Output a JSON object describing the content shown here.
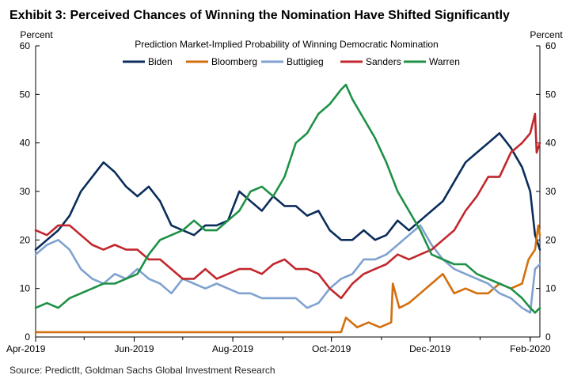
{
  "chart_data": {
    "type": "line",
    "title": "Exhibit 3: Perceived Chances of Winning the Nomination Have Shifted Significantly",
    "subtitle": "Prediction Market-Implied  Probability of Winning Democratic Nomination",
    "ylabel_left": "Percent",
    "ylabel_right": "Percent",
    "ylim": [
      0,
      60
    ],
    "yticks": [
      0,
      10,
      20,
      30,
      40,
      50,
      60
    ],
    "x_axis": {
      "start": "2019-04-01",
      "end": "2020-02-07",
      "tick_labels": [
        {
          "date": "2019-04-01",
          "label": "Apr-2019"
        },
        {
          "date": "2019-06-01",
          "label": "Jun-2019"
        },
        {
          "date": "2019-08-01",
          "label": "Aug-2019"
        },
        {
          "date": "2019-10-01",
          "label": "Oct-2019"
        },
        {
          "date": "2019-12-01",
          "label": "Dec-2019"
        },
        {
          "date": "2020-02-01",
          "label": "Feb-2020"
        }
      ]
    },
    "grid": false,
    "legend_position": "top",
    "source": "Source: PredictIt, Goldman Sachs Global Investment Research",
    "series": [
      {
        "name": "Biden",
        "color": "#0b2d5b",
        "points": [
          [
            "2019-04-01",
            18
          ],
          [
            "2019-04-08",
            20
          ],
          [
            "2019-04-15",
            22
          ],
          [
            "2019-04-22",
            25
          ],
          [
            "2019-04-29",
            30
          ],
          [
            "2019-05-06",
            33
          ],
          [
            "2019-05-13",
            36
          ],
          [
            "2019-05-20",
            34
          ],
          [
            "2019-05-27",
            31
          ],
          [
            "2019-06-03",
            29
          ],
          [
            "2019-06-10",
            31
          ],
          [
            "2019-06-17",
            28
          ],
          [
            "2019-06-24",
            23
          ],
          [
            "2019-07-01",
            22
          ],
          [
            "2019-07-08",
            21
          ],
          [
            "2019-07-15",
            23
          ],
          [
            "2019-07-22",
            23
          ],
          [
            "2019-07-29",
            24
          ],
          [
            "2019-08-05",
            30
          ],
          [
            "2019-08-12",
            28
          ],
          [
            "2019-08-19",
            26
          ],
          [
            "2019-08-26",
            29
          ],
          [
            "2019-09-02",
            27
          ],
          [
            "2019-09-09",
            27
          ],
          [
            "2019-09-16",
            25
          ],
          [
            "2019-09-23",
            26
          ],
          [
            "2019-09-30",
            22
          ],
          [
            "2019-10-07",
            20
          ],
          [
            "2019-10-14",
            20
          ],
          [
            "2019-10-21",
            22
          ],
          [
            "2019-10-28",
            20
          ],
          [
            "2019-11-04",
            21
          ],
          [
            "2019-11-11",
            24
          ],
          [
            "2019-11-18",
            22
          ],
          [
            "2019-11-25",
            24
          ],
          [
            "2019-12-02",
            26
          ],
          [
            "2019-12-09",
            28
          ],
          [
            "2019-12-16",
            32
          ],
          [
            "2019-12-23",
            36
          ],
          [
            "2019-12-30",
            38
          ],
          [
            "2020-01-06",
            40
          ],
          [
            "2020-01-13",
            42
          ],
          [
            "2020-01-20",
            39
          ],
          [
            "2020-01-27",
            35
          ],
          [
            "2020-02-01",
            30
          ],
          [
            "2020-02-04",
            21
          ],
          [
            "2020-02-07",
            18
          ]
        ]
      },
      {
        "name": "Bloomberg",
        "color": "#d46f0e",
        "points": [
          [
            "2019-04-01",
            1
          ],
          [
            "2019-05-01",
            1
          ],
          [
            "2019-06-01",
            1
          ],
          [
            "2019-07-01",
            1
          ],
          [
            "2019-08-01",
            1
          ],
          [
            "2019-09-01",
            1
          ],
          [
            "2019-10-01",
            1
          ],
          [
            "2019-10-07",
            1
          ],
          [
            "2019-10-10",
            4
          ],
          [
            "2019-10-17",
            2
          ],
          [
            "2019-10-24",
            3
          ],
          [
            "2019-10-31",
            2
          ],
          [
            "2019-11-07",
            3
          ],
          [
            "2019-11-08",
            11
          ],
          [
            "2019-11-12",
            6
          ],
          [
            "2019-11-18",
            7
          ],
          [
            "2019-11-25",
            9
          ],
          [
            "2019-12-02",
            11
          ],
          [
            "2019-12-09",
            13
          ],
          [
            "2019-12-16",
            9
          ],
          [
            "2019-12-23",
            10
          ],
          [
            "2019-12-30",
            9
          ],
          [
            "2020-01-06",
            9
          ],
          [
            "2020-01-13",
            11
          ],
          [
            "2020-01-20",
            10
          ],
          [
            "2020-01-27",
            11
          ],
          [
            "2020-01-31",
            16
          ],
          [
            "2020-02-04",
            18
          ],
          [
            "2020-02-06",
            23
          ],
          [
            "2020-02-07",
            21
          ]
        ]
      },
      {
        "name": "Buttigieg",
        "color": "#7fa2cf",
        "points": [
          [
            "2019-04-01",
            17
          ],
          [
            "2019-04-08",
            19
          ],
          [
            "2019-04-15",
            20
          ],
          [
            "2019-04-22",
            18
          ],
          [
            "2019-04-29",
            14
          ],
          [
            "2019-05-06",
            12
          ],
          [
            "2019-05-13",
            11
          ],
          [
            "2019-05-20",
            13
          ],
          [
            "2019-05-27",
            12
          ],
          [
            "2019-06-03",
            14
          ],
          [
            "2019-06-10",
            12
          ],
          [
            "2019-06-17",
            11
          ],
          [
            "2019-06-24",
            9
          ],
          [
            "2019-07-01",
            12
          ],
          [
            "2019-07-08",
            11
          ],
          [
            "2019-07-15",
            10
          ],
          [
            "2019-07-22",
            11
          ],
          [
            "2019-07-29",
            10
          ],
          [
            "2019-08-05",
            9
          ],
          [
            "2019-08-12",
            9
          ],
          [
            "2019-08-19",
            8
          ],
          [
            "2019-08-26",
            8
          ],
          [
            "2019-09-02",
            8
          ],
          [
            "2019-09-09",
            8
          ],
          [
            "2019-09-16",
            6
          ],
          [
            "2019-09-23",
            7
          ],
          [
            "2019-09-30",
            10
          ],
          [
            "2019-10-07",
            12
          ],
          [
            "2019-10-14",
            13
          ],
          [
            "2019-10-21",
            16
          ],
          [
            "2019-10-28",
            16
          ],
          [
            "2019-11-04",
            17
          ],
          [
            "2019-11-11",
            19
          ],
          [
            "2019-11-18",
            21
          ],
          [
            "2019-11-25",
            23
          ],
          [
            "2019-12-02",
            19
          ],
          [
            "2019-12-09",
            16
          ],
          [
            "2019-12-16",
            14
          ],
          [
            "2019-12-23",
            13
          ],
          [
            "2019-12-30",
            12
          ],
          [
            "2020-01-06",
            11
          ],
          [
            "2020-01-13",
            9
          ],
          [
            "2020-01-20",
            8
          ],
          [
            "2020-01-27",
            6
          ],
          [
            "2020-02-01",
            5
          ],
          [
            "2020-02-04",
            14
          ],
          [
            "2020-02-07",
            15
          ]
        ]
      },
      {
        "name": "Sanders",
        "color": "#c1272d",
        "points": [
          [
            "2019-04-01",
            22
          ],
          [
            "2019-04-08",
            21
          ],
          [
            "2019-04-15",
            23
          ],
          [
            "2019-04-22",
            23
          ],
          [
            "2019-04-29",
            21
          ],
          [
            "2019-05-06",
            19
          ],
          [
            "2019-05-13",
            18
          ],
          [
            "2019-05-20",
            19
          ],
          [
            "2019-05-27",
            18
          ],
          [
            "2019-06-03",
            18
          ],
          [
            "2019-06-10",
            16
          ],
          [
            "2019-06-17",
            16
          ],
          [
            "2019-06-24",
            14
          ],
          [
            "2019-07-01",
            12
          ],
          [
            "2019-07-08",
            12
          ],
          [
            "2019-07-15",
            14
          ],
          [
            "2019-07-22",
            12
          ],
          [
            "2019-07-29",
            13
          ],
          [
            "2019-08-05",
            14
          ],
          [
            "2019-08-12",
            14
          ],
          [
            "2019-08-19",
            13
          ],
          [
            "2019-08-26",
            15
          ],
          [
            "2019-09-02",
            16
          ],
          [
            "2019-09-09",
            14
          ],
          [
            "2019-09-16",
            14
          ],
          [
            "2019-09-23",
            13
          ],
          [
            "2019-09-30",
            10
          ],
          [
            "2019-10-07",
            8
          ],
          [
            "2019-10-14",
            11
          ],
          [
            "2019-10-21",
            13
          ],
          [
            "2019-10-28",
            14
          ],
          [
            "2019-11-04",
            15
          ],
          [
            "2019-11-11",
            17
          ],
          [
            "2019-11-18",
            16
          ],
          [
            "2019-11-25",
            17
          ],
          [
            "2019-12-02",
            18
          ],
          [
            "2019-12-09",
            20
          ],
          [
            "2019-12-16",
            22
          ],
          [
            "2019-12-23",
            26
          ],
          [
            "2019-12-30",
            29
          ],
          [
            "2020-01-06",
            33
          ],
          [
            "2020-01-13",
            33
          ],
          [
            "2020-01-20",
            38
          ],
          [
            "2020-01-27",
            40
          ],
          [
            "2020-02-01",
            42
          ],
          [
            "2020-02-04",
            46
          ],
          [
            "2020-02-05",
            38
          ],
          [
            "2020-02-07",
            40
          ]
        ]
      },
      {
        "name": "Warren",
        "color": "#1e9146",
        "points": [
          [
            "2019-04-01",
            6
          ],
          [
            "2019-04-08",
            7
          ],
          [
            "2019-04-15",
            6
          ],
          [
            "2019-04-22",
            8
          ],
          [
            "2019-04-29",
            9
          ],
          [
            "2019-05-06",
            10
          ],
          [
            "2019-05-13",
            11
          ],
          [
            "2019-05-20",
            11
          ],
          [
            "2019-05-27",
            12
          ],
          [
            "2019-06-03",
            13
          ],
          [
            "2019-06-10",
            17
          ],
          [
            "2019-06-17",
            20
          ],
          [
            "2019-06-24",
            21
          ],
          [
            "2019-07-01",
            22
          ],
          [
            "2019-07-08",
            24
          ],
          [
            "2019-07-15",
            22
          ],
          [
            "2019-07-22",
            22
          ],
          [
            "2019-07-29",
            24
          ],
          [
            "2019-08-05",
            26
          ],
          [
            "2019-08-12",
            30
          ],
          [
            "2019-08-19",
            31
          ],
          [
            "2019-08-26",
            29
          ],
          [
            "2019-09-02",
            33
          ],
          [
            "2019-09-09",
            40
          ],
          [
            "2019-09-16",
            42
          ],
          [
            "2019-09-23",
            46
          ],
          [
            "2019-09-30",
            48
          ],
          [
            "2019-10-07",
            51
          ],
          [
            "2019-10-10",
            52
          ],
          [
            "2019-10-14",
            49
          ],
          [
            "2019-10-21",
            45
          ],
          [
            "2019-10-28",
            41
          ],
          [
            "2019-11-04",
            36
          ],
          [
            "2019-11-11",
            30
          ],
          [
            "2019-11-18",
            26
          ],
          [
            "2019-11-25",
            22
          ],
          [
            "2019-12-02",
            17
          ],
          [
            "2019-12-09",
            16
          ],
          [
            "2019-12-16",
            15
          ],
          [
            "2019-12-23",
            15
          ],
          [
            "2019-12-30",
            13
          ],
          [
            "2020-01-06",
            12
          ],
          [
            "2020-01-13",
            11
          ],
          [
            "2020-01-20",
            10
          ],
          [
            "2020-01-27",
            8
          ],
          [
            "2020-02-01",
            6
          ],
          [
            "2020-02-04",
            5
          ],
          [
            "2020-02-07",
            6
          ]
        ]
      }
    ]
  }
}
